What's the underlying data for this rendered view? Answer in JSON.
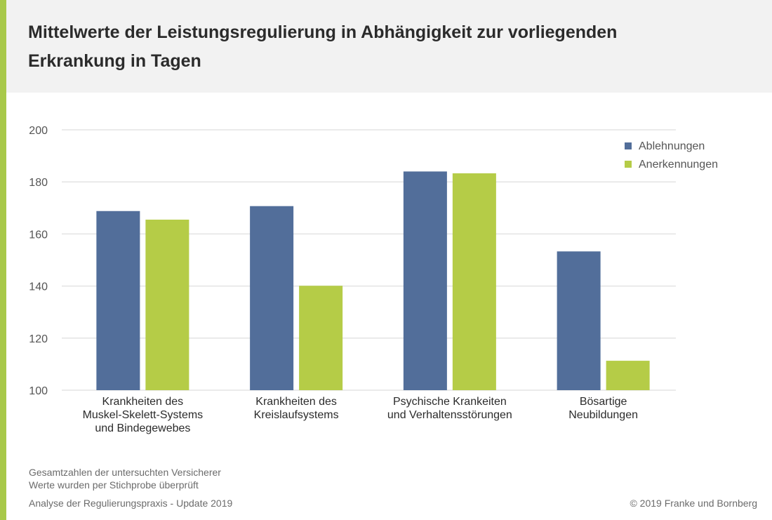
{
  "colors": {
    "accent": "#a8c94a",
    "ablehnungen": "#526e9a",
    "anerkennungen": "#b5cc47",
    "grid": "#e3e3e3"
  },
  "chart_data": {
    "type": "bar",
    "title": "Mittelwerte der Leistungsregulierung in Abhängigkeit zur vorliegenden Erkrankung in Tagen",
    "categories": [
      "Krankheiten des\nMuskel-Skelett-Systems\nund Bindegewebes",
      "Krankheiten des\nKreislaufsystems",
      "Psychische Krankeiten\nund Verhaltensstörungen",
      "Bösartige\nNeubildungen"
    ],
    "series": [
      {
        "name": "Ablehnungen",
        "values": [
          168.8,
          170.7,
          184.0,
          153.3
        ]
      },
      {
        "name": "Anerkennungen",
        "values": [
          165.5,
          140.1,
          183.3,
          111.3
        ]
      }
    ],
    "ylim": [
      100,
      200
    ],
    "yticks": [
      100,
      120,
      140,
      160,
      180,
      200
    ],
    "grid": true,
    "legend_position": "top-right"
  },
  "footer": {
    "note1": "Gesamtzahlen der untersuchten Versicherer",
    "note2": "Werte wurden per Stichprobe überprüft",
    "source": "Analyse der Regulierungspraxis - Update 2019",
    "copyright": "© 2019 Franke und Bornberg"
  }
}
